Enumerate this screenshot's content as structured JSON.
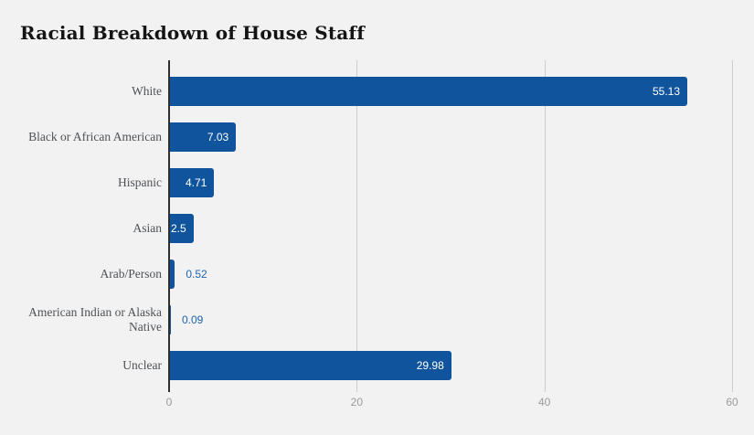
{
  "page": {
    "background": "#f2f2f2"
  },
  "chart_data": {
    "type": "bar",
    "orientation": "horizontal",
    "title": "Racial Breakdown of House Staff",
    "categories": [
      "White",
      "Black or African American",
      "Hispanic",
      "Asian",
      "Arab/Person",
      "American Indian or Alaska Native",
      "Unclear"
    ],
    "values": [
      55.13,
      7.03,
      4.71,
      2.5,
      0.52,
      0.09,
      29.98
    ],
    "value_labels": [
      "55.13",
      "7.03",
      "4.71",
      "2.5",
      "0.52",
      "0.09",
      "29.98"
    ],
    "xlabel": "",
    "ylabel": "",
    "xlim": [
      0,
      60
    ],
    "x_ticks": [
      "0",
      "20",
      "40",
      "60"
    ],
    "x_tick_values": [
      0,
      20,
      40,
      60
    ],
    "grid": "vertical gridlines at x ticks, dark line at zero, no bottom axis line",
    "legend": "none",
    "value_label_placement": "inside bar end when bar is wide enough, otherwise outside right of bar",
    "colors": {
      "bar": "#10549d",
      "value_label_inside": "#ffffff",
      "value_label_outside": "#1d64ae",
      "category_label": "#4e5256",
      "tick_label": "#9b9b9b",
      "gridline": "#cccccc",
      "axis_line": "#2f2f2f",
      "background": "#f2f2f2",
      "title": "#141414"
    }
  }
}
